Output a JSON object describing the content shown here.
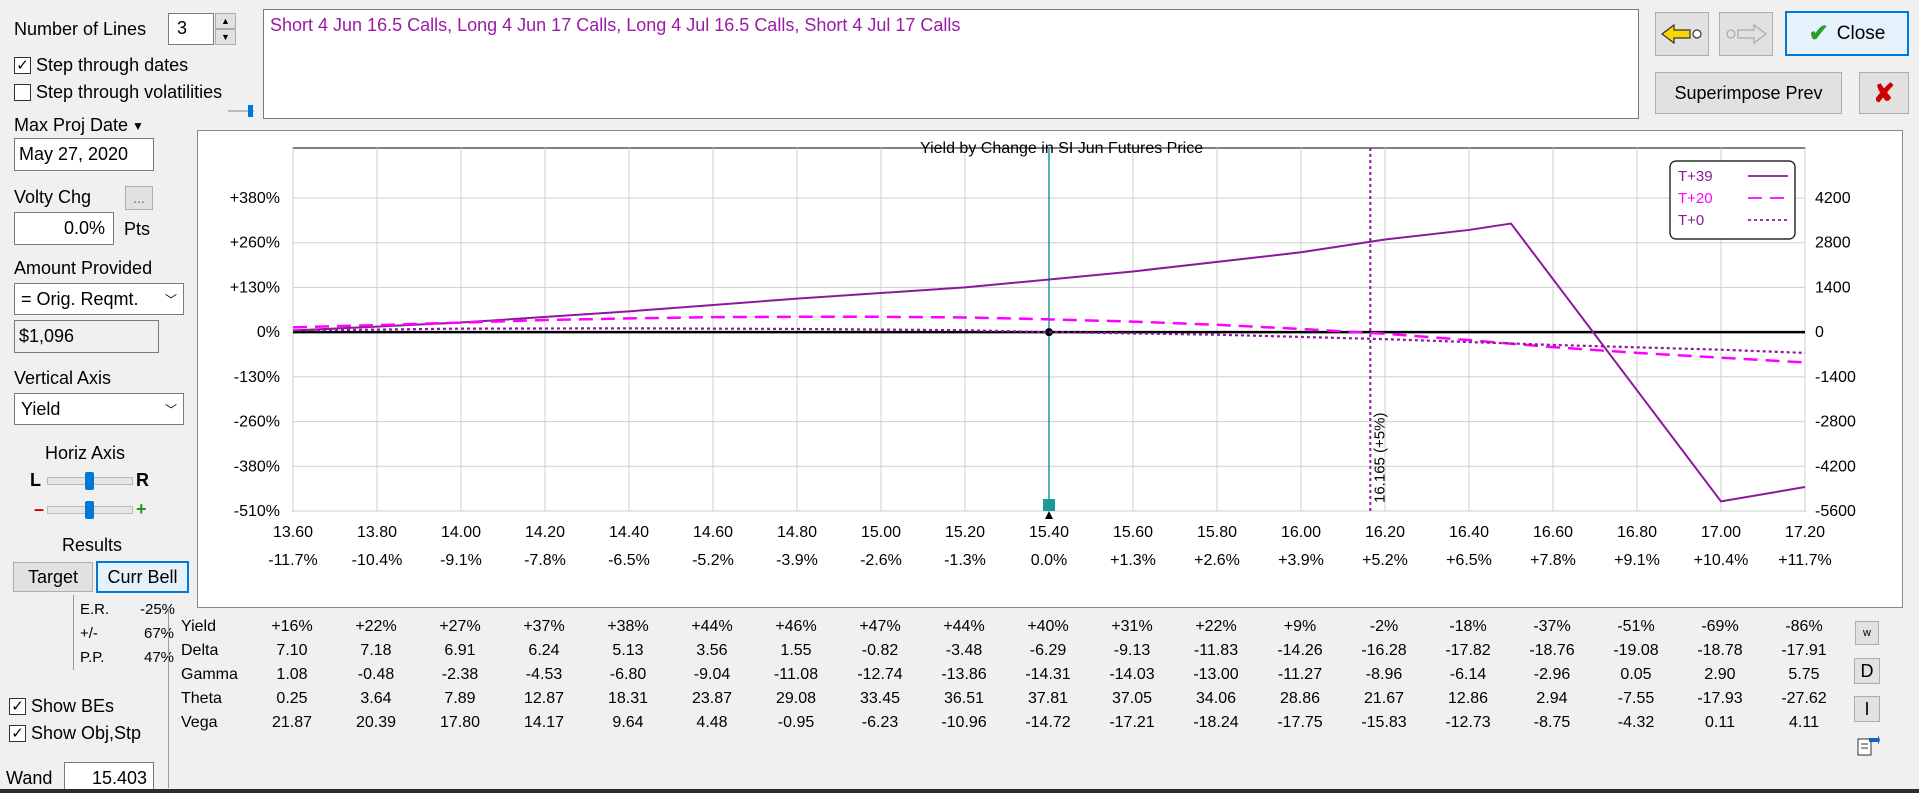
{
  "controls": {
    "number_of_lines_label": "Number of Lines",
    "number_of_lines_value": "3",
    "step_dates_label": "Step through dates",
    "step_dates_checked": true,
    "step_vols_label": "Step through volatilities",
    "step_vols_checked": false,
    "max_proj_date_label": "Max Proj Date",
    "max_proj_date_value": "May 27, 2020",
    "volty_chg_label": "Volty Chg",
    "volty_ellipsis": "...",
    "volty_value": "0.0%",
    "volty_unit": "Pts",
    "amount_provided_label": "Amount Provided",
    "amount_provided_value": "= Orig. Reqmt.",
    "amount_value": "$1,096",
    "vertical_axis_label": "Vertical Axis",
    "vertical_axis_value": "Yield",
    "horiz_axis_label": "Horiz Axis",
    "horiz_l": "L",
    "horiz_r": "R",
    "zoom_minus": "–",
    "zoom_plus": "+",
    "results_label": "Results",
    "target_tab": "Target",
    "currbell_tab": "Curr Bell",
    "er_label": "E.R.",
    "er_value": "-25%",
    "pm_label": "+/-",
    "pm_value": "67%",
    "pp_label": "P.P.",
    "pp_value": "47%",
    "show_bes_label": "Show BEs",
    "show_bes_checked": true,
    "show_obj_label": "Show Obj,Stp",
    "show_obj_checked": true,
    "wand_label": "Wand",
    "wand_value": "15.403"
  },
  "strategy_text": "Short 4 Jun 16.5 Calls, Long 4 Jun 17 Calls, Long 4 Jul 16.5 Calls, Short 4 Jul 17 Calls",
  "buttons": {
    "close_label": "Close",
    "superimpose_label": "Superimpose Prev",
    "right_side": [
      "w",
      "D",
      "I"
    ]
  },
  "colors": {
    "t39": "#8b1a9b",
    "t20": "#ff00ff",
    "t0": "#8b1a9b",
    "accent": "#0078d7",
    "teal": "#1a9a9a",
    "strategy_text": "#9b1aa6",
    "close_check": "#2a9d2a",
    "cancel_x": "#cc0000"
  },
  "chart_data": {
    "type": "line",
    "title": "Yield by Change in SI Jun Futures Price",
    "x": [
      13.6,
      13.8,
      14.0,
      14.2,
      14.4,
      14.6,
      14.8,
      15.0,
      15.2,
      15.4,
      15.6,
      15.8,
      16.0,
      16.2,
      16.4,
      16.6,
      16.8,
      17.0,
      17.2
    ],
    "x_tick_labels": [
      "13.60",
      "13.80",
      "14.00",
      "14.20",
      "14.40",
      "14.60",
      "14.80",
      "15.00",
      "15.20",
      "15.40",
      "15.60",
      "15.80",
      "16.00",
      "16.20",
      "16.40",
      "16.60",
      "16.80",
      "17.00",
      "17.20"
    ],
    "x_pct_labels": [
      "-11.7%",
      "-10.4%",
      "-9.1%",
      "-7.8%",
      "-6.5%",
      "-5.2%",
      "-3.9%",
      "-2.6%",
      "-1.3%",
      "0.0%",
      "+1.3%",
      "+2.6%",
      "+3.9%",
      "+5.2%",
      "+6.5%",
      "+7.8%",
      "+9.1%",
      "+10.4%",
      "+11.7%"
    ],
    "xlim": [
      13.6,
      17.2
    ],
    "y_left_ticks": [
      "+380%",
      "+260%",
      "+130%",
      "0%",
      "-130%",
      "-260%",
      "-380%",
      "-510%"
    ],
    "y_right_ticks": [
      "4200",
      "2800",
      "1400",
      "0",
      "-1400",
      "-2800",
      "-4200",
      "-5600"
    ],
    "ylim": [
      -5600,
      4200
    ],
    "series": [
      {
        "name": "T+39",
        "style": "solid",
        "x": [
          13.6,
          14.0,
          14.4,
          14.8,
          15.2,
          15.4,
          15.6,
          16.0,
          16.2,
          16.4,
          16.5,
          17.0,
          17.2
        ],
        "y": [
          50,
          300,
          650,
          1050,
          1400,
          1650,
          1900,
          2500,
          2900,
          3200,
          3400,
          -5300,
          -4850
        ]
      },
      {
        "name": "T+20",
        "style": "dashed",
        "x": [
          13.6,
          13.8,
          14.0,
          14.2,
          14.4,
          14.6,
          14.8,
          15.0,
          15.2,
          15.4,
          15.6,
          15.8,
          16.0,
          16.2,
          16.4,
          16.6,
          16.8,
          17.0,
          17.2
        ],
        "y": [
          150,
          220,
          300,
          380,
          430,
          470,
          480,
          480,
          460,
          400,
          330,
          230,
          100,
          -50,
          -250,
          -470,
          -650,
          -800,
          -950
        ]
      },
      {
        "name": "T+0",
        "style": "dotted",
        "x": [
          13.6,
          14.0,
          14.4,
          14.8,
          15.2,
          15.4,
          15.8,
          16.2,
          16.6,
          17.0,
          17.2
        ],
        "y": [
          50,
          110,
          120,
          100,
          60,
          0,
          -80,
          -220,
          -400,
          -550,
          -650
        ]
      }
    ],
    "current_price": 15.4,
    "marker_line_x": 16.165,
    "marker_line_label": "16.165 (+5%)",
    "legend_position": "top-right",
    "grid": true
  },
  "greeks": {
    "row_labels": [
      "Yield",
      "Delta",
      "Gamma",
      "Theta",
      "Vega"
    ],
    "rows": [
      [
        "+16%",
        "+22%",
        "+27%",
        "+37%",
        "+38%",
        "+44%",
        "+46%",
        "+47%",
        "+44%",
        "+40%",
        "+31%",
        "+22%",
        "+9%",
        "-2%",
        "-18%",
        "-37%",
        "-51%",
        "-69%",
        "-86%"
      ],
      [
        "7.10",
        "7.18",
        "6.91",
        "6.24",
        "5.13",
        "3.56",
        "1.55",
        "-0.82",
        "-3.48",
        "-6.29",
        "-9.13",
        "-11.83",
        "-14.26",
        "-16.28",
        "-17.82",
        "-18.76",
        "-19.08",
        "-18.78",
        "-17.91"
      ],
      [
        "1.08",
        "-0.48",
        "-2.38",
        "-4.53",
        "-6.80",
        "-9.04",
        "-11.08",
        "-12.74",
        "-13.86",
        "-14.31",
        "-14.03",
        "-13.00",
        "-11.27",
        "-8.96",
        "-6.14",
        "-2.96",
        "0.05",
        "2.90",
        "5.75"
      ],
      [
        "0.25",
        "3.64",
        "7.89",
        "12.87",
        "18.31",
        "23.87",
        "29.08",
        "33.45",
        "36.51",
        "37.81",
        "37.05",
        "34.06",
        "28.86",
        "21.67",
        "12.86",
        "2.94",
        "-7.55",
        "-17.93",
        "-27.62"
      ],
      [
        "21.87",
        "20.39",
        "17.80",
        "14.17",
        "9.64",
        "4.48",
        "-0.95",
        "-6.23",
        "-10.96",
        "-14.72",
        "-17.21",
        "-18.24",
        "-17.75",
        "-15.83",
        "-12.73",
        "-8.75",
        "-4.32",
        "0.11",
        "4.11"
      ]
    ]
  }
}
